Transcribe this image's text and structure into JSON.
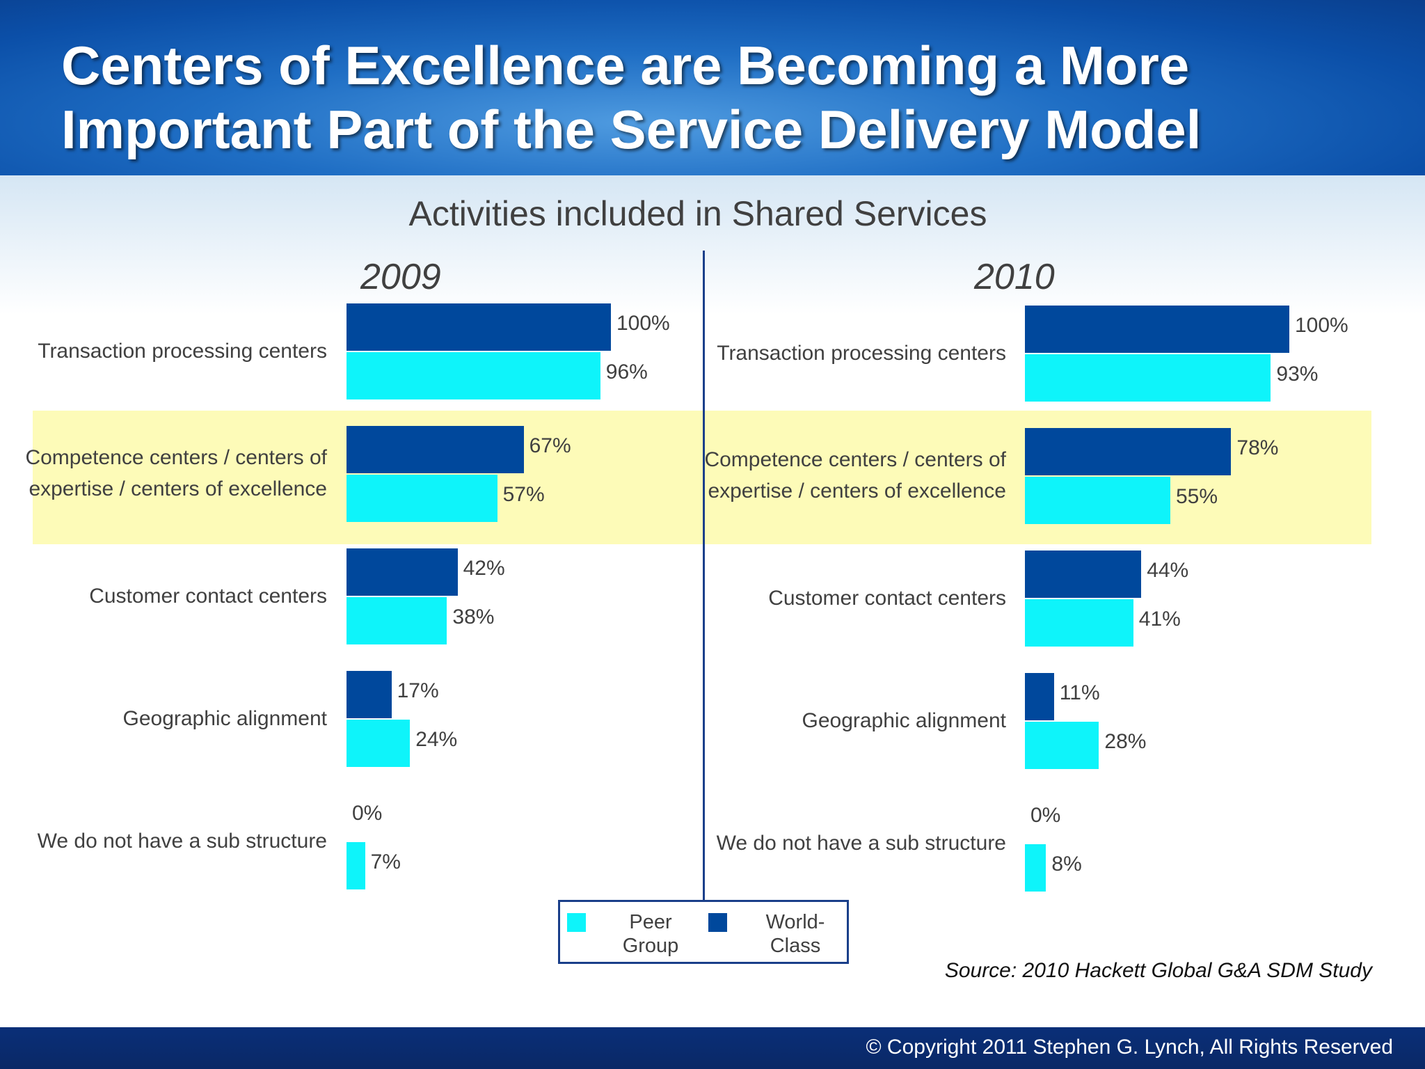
{
  "header": {
    "title_line1": "Centers of Excellence are Becoming a More",
    "title_line2": "Important Part of the Service Delivery Model"
  },
  "colors": {
    "peer_group": "#0ef4fa",
    "world_class": "#00489c",
    "highlight": "#fdfbb8",
    "header": "#1f6ec4"
  },
  "chart_data": [
    {
      "type": "bar",
      "orientation": "horizontal",
      "title": "2009",
      "subtitle": "Activities included in Shared Services",
      "categories": [
        "Transaction processing centers",
        "Competence centers / centers of expertise / centers of excellence",
        "Customer contact centers",
        "Geographic alignment",
        "We do not have a sub structure"
      ],
      "series": [
        {
          "name": "World-Class",
          "values": [
            100,
            67,
            42,
            17,
            0
          ]
        },
        {
          "name": "Peer Group",
          "values": [
            96,
            57,
            38,
            24,
            7
          ]
        }
      ],
      "unit": "%",
      "xlim": [
        0,
        100
      ],
      "highlighted_category": 1,
      "legend": "bottom-center",
      "grid": false
    },
    {
      "type": "bar",
      "orientation": "horizontal",
      "title": "2010",
      "categories": [
        "Transaction processing centers",
        "Competence centers / centers of expertise / centers of excellence",
        "Customer contact centers",
        "Geographic alignment",
        "We do not have a sub structure"
      ],
      "series": [
        {
          "name": "World-Class",
          "values": [
            100,
            78,
            44,
            11,
            0
          ]
        },
        {
          "name": "Peer Group",
          "values": [
            93,
            55,
            41,
            28,
            8
          ]
        }
      ],
      "unit": "%",
      "xlim": [
        0,
        100
      ],
      "highlighted_category": 1,
      "legend": "bottom-center",
      "grid": false
    }
  ],
  "chart_title": "Activities included in Shared Services",
  "category_lines": [
    [
      "Transaction processing centers"
    ],
    [
      "Competence centers / centers of",
      "expertise / centers of excellence"
    ],
    [
      "Customer contact centers"
    ],
    [
      "Geographic alignment"
    ],
    [
      "We do not have a sub structure"
    ]
  ],
  "legend": {
    "peer": "Peer\nGroup",
    "world": "World-\nClass"
  },
  "source": "Source: 2010 Hackett Global G&A SDM Study",
  "footer": {
    "copyright": "© Copyright 2011 Stephen G. Lynch, All Rights Reserved"
  }
}
